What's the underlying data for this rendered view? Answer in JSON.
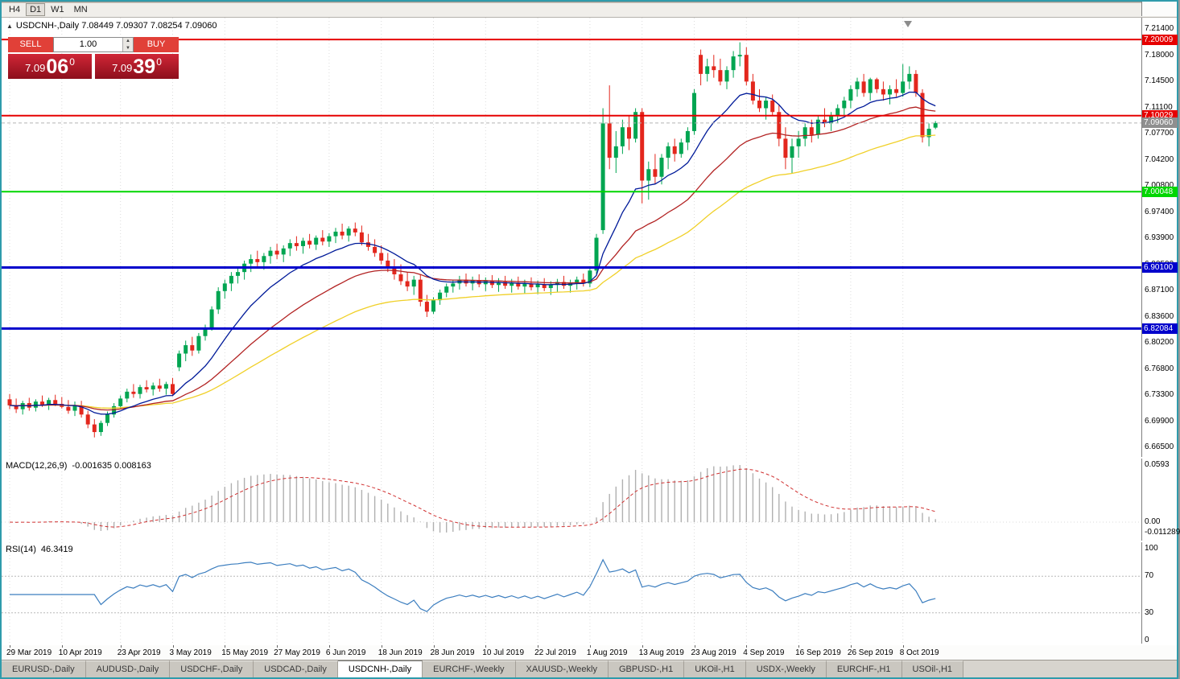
{
  "toolbar": {
    "timeframes": [
      "H4",
      "D1",
      "W1",
      "MN"
    ],
    "active": "D1"
  },
  "chart": {
    "collapse_icon": "▲",
    "symbol_title": "USDCNH-,Daily",
    "ohlc": "7.08449 7.09307 7.08254 7.09060"
  },
  "trade_panel": {
    "sell_label": "SELL",
    "buy_label": "BUY",
    "volume": "1.00",
    "spin_up": "▲",
    "spin_down": "▼",
    "sell_price": {
      "small": "7.09",
      "big": "06",
      "sup": "0"
    },
    "buy_price": {
      "small": "7.09",
      "big": "39",
      "sup": "0"
    }
  },
  "chart_data": {
    "type": "candlestick",
    "symbol": "USDCNH",
    "timeframe": "Daily",
    "price_axis": {
      "top": 7.214,
      "bottom": 6.665
    },
    "up_color": "#00a551",
    "down_color": "#e3271d",
    "scale_ticks": [
      "7.21400",
      "7.18000",
      "7.14500",
      "7.11100",
      "7.07700",
      "7.04200",
      "7.00800",
      "6.97400",
      "6.93900",
      "6.90500",
      "6.87100",
      "6.83600",
      "6.80200",
      "6.76800",
      "6.73300",
      "6.69900",
      "6.66500"
    ],
    "date_labels": [
      [
        "29 Mar 2019",
        0
      ],
      [
        "10 Apr 2019",
        8
      ],
      [
        "23 Apr 2019",
        17
      ],
      [
        "3 May 2019",
        25
      ],
      [
        "15 May 2019",
        33
      ],
      [
        "27 May 2019",
        41
      ],
      [
        "6 Jun 2019",
        49
      ],
      [
        "18 Jun 2019",
        57
      ],
      [
        "28 Jun 2019",
        65
      ],
      [
        "10 Jul 2019",
        73
      ],
      [
        "22 Jul 2019",
        81
      ],
      [
        "1 Aug 2019",
        89
      ],
      [
        "13 Aug 2019",
        97
      ],
      [
        "23 Aug 2019",
        105
      ],
      [
        "4 Sep 2019",
        113
      ],
      [
        "16 Sep 2019",
        121
      ],
      [
        "26 Sep 2019",
        129
      ],
      [
        "8 Oct 2019",
        137
      ]
    ],
    "levels": [
      {
        "price": 7.20009,
        "label": "7.20009",
        "color": "#e60000",
        "width": 2
      },
      {
        "price": 7.10029,
        "label": "7.10029",
        "color": "#e60000",
        "width": 2
      },
      {
        "price": 7.00048,
        "label": "7.00048",
        "color": "#00d600",
        "width": 2
      },
      {
        "price": 6.901,
        "label": "6.90100",
        "color": "#0000cc",
        "width": 3
      },
      {
        "price": 6.82084,
        "label": "6.82084",
        "color": "#0000cc",
        "width": 3
      }
    ],
    "current_price": {
      "value": 7.0906,
      "label": "7.09060",
      "color": "#8f8f8f"
    },
    "mas": [
      {
        "name": "ma-slow-yellow",
        "period": 55,
        "color": "#f0d028"
      },
      {
        "name": "ma-mid-red",
        "period": 30,
        "color": "#b22222"
      },
      {
        "name": "ma-fast-blue",
        "period": 13,
        "color": "#001a99"
      }
    ],
    "candles": [
      [
        6.728,
        6.735,
        6.715,
        6.72
      ],
      [
        6.72,
        6.729,
        6.71,
        6.715
      ],
      [
        6.715,
        6.726,
        6.708,
        6.723
      ],
      [
        6.723,
        6.73,
        6.713,
        6.717
      ],
      [
        6.717,
        6.728,
        6.712,
        6.725
      ],
      [
        6.725,
        6.733,
        6.718,
        6.721
      ],
      [
        6.721,
        6.73,
        6.714,
        6.727
      ],
      [
        6.727,
        6.734,
        6.719,
        6.722
      ],
      [
        6.722,
        6.731,
        6.716,
        6.718
      ],
      [
        6.718,
        6.727,
        6.709,
        6.713
      ],
      [
        6.713,
        6.725,
        6.706,
        6.72
      ],
      [
        6.72,
        6.726,
        6.704,
        6.708
      ],
      [
        6.708,
        6.713,
        6.69,
        6.695
      ],
      [
        6.695,
        6.702,
        6.678,
        6.685
      ],
      [
        6.685,
        6.7,
        6.68,
        6.697
      ],
      [
        6.697,
        6.712,
        6.693,
        6.708
      ],
      [
        6.708,
        6.723,
        6.704,
        6.719
      ],
      [
        6.719,
        6.733,
        6.715,
        6.729
      ],
      [
        6.729,
        6.742,
        6.724,
        6.738
      ],
      [
        6.738,
        6.748,
        6.73,
        6.735
      ],
      [
        6.735,
        6.747,
        6.729,
        6.744
      ],
      [
        6.744,
        6.753,
        6.737,
        6.741
      ],
      [
        6.741,
        6.75,
        6.733,
        6.746
      ],
      [
        6.746,
        6.755,
        6.738,
        6.742
      ],
      [
        6.742,
        6.751,
        6.734,
        6.748
      ],
      [
        6.748,
        6.756,
        6.732,
        6.735
      ],
      [
        6.77,
        6.792,
        6.765,
        6.788
      ],
      [
        6.788,
        6.805,
        6.778,
        6.799
      ],
      [
        6.799,
        6.81,
        6.785,
        6.792
      ],
      [
        6.792,
        6.815,
        6.788,
        6.811
      ],
      [
        6.811,
        6.826,
        6.805,
        6.822
      ],
      [
        6.822,
        6.85,
        6.818,
        6.846
      ],
      [
        6.846,
        6.875,
        6.84,
        6.87
      ],
      [
        6.87,
        6.885,
        6.86,
        6.88
      ],
      [
        6.88,
        6.895,
        6.87,
        6.89
      ],
      [
        6.89,
        6.9,
        6.88,
        6.895
      ],
      [
        6.895,
        6.91,
        6.885,
        6.906
      ],
      [
        6.906,
        6.918,
        6.895,
        6.912
      ],
      [
        6.912,
        6.923,
        6.9,
        6.908
      ],
      [
        6.908,
        6.92,
        6.898,
        6.916
      ],
      [
        6.916,
        6.928,
        6.906,
        6.923
      ],
      [
        6.923,
        6.932,
        6.912,
        6.918
      ],
      [
        6.918,
        6.93,
        6.908,
        6.926
      ],
      [
        6.926,
        6.938,
        6.916,
        6.933
      ],
      [
        6.933,
        6.942,
        6.923,
        6.929
      ],
      [
        6.929,
        6.94,
        6.919,
        6.936
      ],
      [
        6.936,
        6.945,
        6.926,
        6.931
      ],
      [
        6.931,
        6.943,
        6.924,
        6.94
      ],
      [
        6.94,
        6.95,
        6.93,
        6.935
      ],
      [
        6.935,
        6.946,
        6.928,
        6.942
      ],
      [
        6.942,
        6.953,
        6.933,
        6.948
      ],
      [
        6.948,
        6.9585,
        6.938,
        6.943
      ],
      [
        6.943,
        6.955,
        6.935,
        6.952
      ],
      [
        6.952,
        6.96,
        6.942,
        6.947
      ],
      [
        6.947,
        6.956,
        6.93,
        6.934
      ],
      [
        6.934,
        6.945,
        6.923,
        6.928
      ],
      [
        6.928,
        6.938,
        6.915,
        6.92
      ],
      [
        6.92,
        6.93,
        6.905,
        6.91
      ],
      [
        6.91,
        6.92,
        6.895,
        6.9
      ],
      [
        6.9,
        6.912,
        6.885,
        6.892
      ],
      [
        6.892,
        6.905,
        6.878,
        6.883
      ],
      [
        6.883,
        6.895,
        6.87,
        6.876
      ],
      [
        6.876,
        6.89,
        6.865,
        6.885
      ],
      [
        6.885,
        6.892,
        6.85,
        6.856
      ],
      [
        6.856,
        6.865,
        6.836,
        6.843
      ],
      [
        6.843,
        6.862,
        6.84,
        6.858
      ],
      [
        6.858,
        6.872,
        6.852,
        6.868
      ],
      [
        6.868,
        6.88,
        6.862,
        6.876
      ],
      [
        6.876,
        6.885,
        6.868,
        6.88
      ],
      [
        6.88,
        6.89,
        6.872,
        6.885
      ],
      [
        6.885,
        6.893,
        6.876,
        6.88
      ],
      [
        6.88,
        6.889,
        6.871,
        6.884
      ],
      [
        6.884,
        6.892,
        6.875,
        6.879
      ],
      [
        6.879,
        6.888,
        6.87,
        6.883
      ],
      [
        6.883,
        6.891,
        6.874,
        6.878
      ],
      [
        6.878,
        6.887,
        6.869,
        6.882
      ],
      [
        6.882,
        6.89,
        6.873,
        6.877
      ],
      [
        6.877,
        6.886,
        6.868,
        6.881
      ],
      [
        6.881,
        6.889,
        6.872,
        6.876
      ],
      [
        6.876,
        6.885,
        6.867,
        6.88
      ],
      [
        6.88,
        6.888,
        6.871,
        6.875
      ],
      [
        6.875,
        6.884,
        6.866,
        6.879
      ],
      [
        6.879,
        6.887,
        6.87,
        6.874
      ],
      [
        6.874,
        6.883,
        6.865,
        6.878
      ],
      [
        6.878,
        6.886,
        6.869,
        6.882
      ],
      [
        6.882,
        6.89,
        6.873,
        6.877
      ],
      [
        6.877,
        6.885,
        6.868,
        6.881
      ],
      [
        6.881,
        6.889,
        6.872,
        6.885
      ],
      [
        6.885,
        6.893,
        6.876,
        6.88
      ],
      [
        6.88,
        6.9,
        6.875,
        6.897
      ],
      [
        6.897,
        6.945,
        6.892,
        6.94
      ],
      [
        6.95,
        7.11,
        6.945,
        7.09
      ],
      [
        7.09,
        7.14,
        7.03,
        7.045
      ],
      [
        7.045,
        7.08,
        7.025,
        7.06
      ],
      [
        7.06,
        7.095,
        7.05,
        7.085
      ],
      [
        7.085,
        7.1,
        7.055,
        7.07
      ],
      [
        7.07,
        7.11,
        7.065,
        7.105
      ],
      [
        7.105,
        7.11,
        6.985,
        7.015
      ],
      [
        7.015,
        7.04,
        6.99,
        7.03
      ],
      [
        7.03,
        7.05,
        7.01,
        7.02
      ],
      [
        7.02,
        7.05,
        7.01,
        7.045
      ],
      [
        7.045,
        7.065,
        7.03,
        7.06
      ],
      [
        7.06,
        7.07,
        7.04,
        7.05
      ],
      [
        7.05,
        7.07,
        7.045,
        7.065
      ],
      [
        7.065,
        7.085,
        7.055,
        7.08
      ],
      [
        7.08,
        7.135,
        7.075,
        7.13
      ],
      [
        7.18,
        7.187,
        7.14,
        7.155
      ],
      [
        7.155,
        7.175,
        7.145,
        7.165
      ],
      [
        7.165,
        7.18,
        7.15,
        7.16
      ],
      [
        7.16,
        7.175,
        7.14,
        7.145
      ],
      [
        7.145,
        7.165,
        7.135,
        7.16
      ],
      [
        7.16,
        7.185,
        7.15,
        7.178
      ],
      [
        7.178,
        7.1965,
        7.165,
        7.18
      ],
      [
        7.18,
        7.19,
        7.14,
        7.145
      ],
      [
        7.145,
        7.155,
        7.115,
        7.12
      ],
      [
        7.12,
        7.135,
        7.105,
        7.11
      ],
      [
        7.11,
        7.125,
        7.095,
        7.12
      ],
      [
        7.12,
        7.128,
        7.1,
        7.105
      ],
      [
        7.105,
        7.115,
        7.06,
        7.07
      ],
      [
        7.07,
        7.085,
        7.03,
        7.045
      ],
      [
        7.045,
        7.07,
        7.025,
        7.06
      ],
      [
        7.06,
        7.08,
        7.045,
        7.07
      ],
      [
        7.07,
        7.09,
        7.06,
        7.085
      ],
      [
        7.085,
        7.095,
        7.065,
        7.075
      ],
      [
        7.075,
        7.1,
        7.07,
        7.095
      ],
      [
        7.095,
        7.11,
        7.085,
        7.09
      ],
      [
        7.09,
        7.105,
        7.08,
        7.1
      ],
      [
        7.1,
        7.115,
        7.09,
        7.11
      ],
      [
        7.11,
        7.125,
        7.1,
        7.12
      ],
      [
        7.12,
        7.14,
        7.11,
        7.135
      ],
      [
        7.135,
        7.15,
        7.125,
        7.145
      ],
      [
        7.145,
        7.155,
        7.125,
        7.13
      ],
      [
        7.13,
        7.15,
        7.12,
        7.148
      ],
      [
        7.148,
        7.15,
        7.13,
        7.135
      ],
      [
        7.135,
        7.145,
        7.12,
        7.128
      ],
      [
        7.128,
        7.14,
        7.115,
        7.135
      ],
      [
        7.135,
        7.148,
        7.125,
        7.13
      ],
      [
        7.13,
        7.168,
        7.125,
        7.145
      ],
      [
        7.145,
        7.165,
        7.135,
        7.155
      ],
      [
        7.155,
        7.16,
        7.125,
        7.13
      ],
      [
        7.13,
        7.135,
        7.065,
        7.072
      ],
      [
        7.072,
        7.09,
        7.06,
        7.083
      ],
      [
        7.0845,
        7.0931,
        7.0825,
        7.0906
      ]
    ]
  },
  "macd": {
    "label": "MACD(12,26,9)",
    "values": "-0.001635 0.008163",
    "params": [
      12,
      26,
      9
    ],
    "scale_labels": [
      "0.0593",
      "0.00",
      "-0.011289"
    ],
    "histogram_color": "#b0b0b0",
    "signal_color": "#d03030"
  },
  "rsi": {
    "label": "RSI(14)",
    "value": "46.3419",
    "period": 14,
    "levels": [
      70,
      30
    ],
    "scale_labels": [
      "100",
      "70",
      "30",
      "0"
    ],
    "color": "#3c7ebf"
  },
  "tabs": {
    "items": [
      "EURUSD-,Daily",
      "AUDUSD-,Daily",
      "USDCHF-,Daily",
      "USDCAD-,Daily",
      "USDCNH-,Daily",
      "EURCHF-,Weekly",
      "XAUUSD-,Weekly",
      "GBPUSD-,H1",
      "UKOil-,H1",
      "USDX-,Weekly",
      "EURCHF-,H1",
      "USOil-,H1"
    ],
    "active": "USDCNH-,Daily"
  }
}
